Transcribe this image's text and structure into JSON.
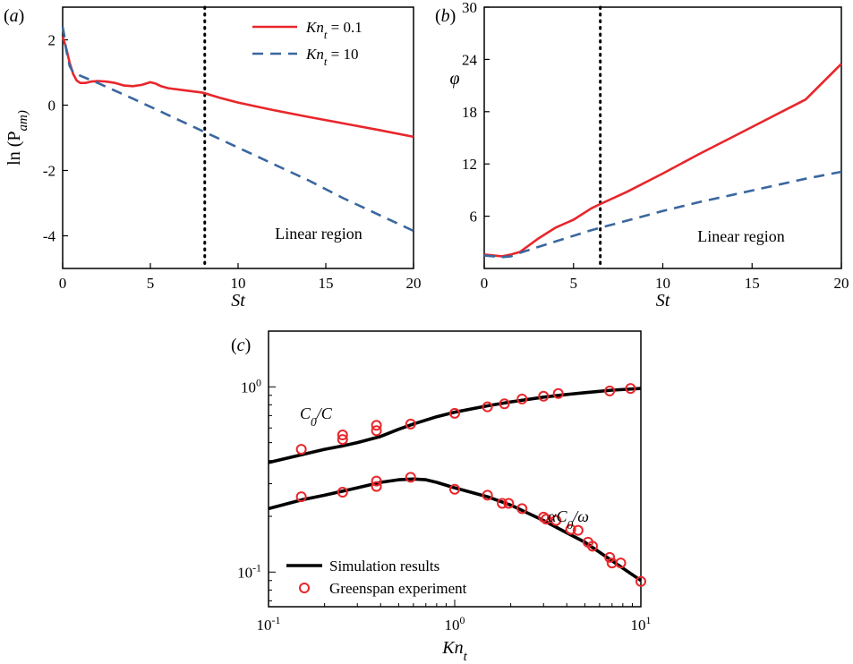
{
  "chart_data": [
    {
      "panel": "(a)",
      "type": "line",
      "xlabel": "St",
      "ylabel": "ln (P_am)",
      "xlim": [
        0,
        20
      ],
      "ylim": [
        -5,
        3
      ],
      "xticks": [
        0,
        5,
        10,
        15,
        20
      ],
      "yticks": [
        -4,
        -2,
        0,
        2
      ],
      "grid": false,
      "legend_position": "top-right",
      "vline_x": 8.1,
      "annotation": "Linear region",
      "series": [
        {
          "name": "Kn_t = 0.1",
          "color": "#e8262b",
          "style": "solid",
          "x": [
            0,
            0.2,
            0.4,
            0.6,
            0.8,
            1.0,
            1.3,
            1.6,
            2.0,
            2.5,
            3.0,
            3.5,
            4.0,
            4.5,
            5.0,
            5.3,
            5.6,
            6.0,
            7.0,
            8.0,
            9.0,
            10.0,
            12.0,
            14.0,
            16.0,
            18.0,
            20.0
          ],
          "y": [
            2.1,
            1.75,
            1.3,
            0.95,
            0.75,
            0.68,
            0.68,
            0.72,
            0.74,
            0.72,
            0.68,
            0.6,
            0.58,
            0.62,
            0.7,
            0.66,
            0.58,
            0.52,
            0.45,
            0.38,
            0.22,
            0.08,
            -0.15,
            -0.36,
            -0.56,
            -0.76,
            -0.97
          ]
        },
        {
          "name": "Kn_t = 10",
          "color": "#3a679f",
          "style": "dashed",
          "x": [
            0,
            0.1,
            0.2,
            0.4,
            0.6,
            0.8,
            1.0,
            2.0,
            4.0,
            6.0,
            8.0,
            10.0,
            12.0,
            14.0,
            16.0,
            18.0,
            20.0
          ],
          "y": [
            2.4,
            2.1,
            1.7,
            1.2,
            1.0,
            0.95,
            0.9,
            0.68,
            0.2,
            -0.3,
            -0.8,
            -1.3,
            -1.8,
            -2.3,
            -2.85,
            -3.35,
            -3.85
          ]
        }
      ]
    },
    {
      "panel": "(b)",
      "type": "line",
      "xlabel": "St",
      "ylabel": "φ",
      "xlim": [
        0,
        20
      ],
      "ylim": [
        0,
        30
      ],
      "xticks": [
        0,
        5,
        10,
        15,
        20
      ],
      "yticks": [
        6,
        12,
        18,
        24,
        30
      ],
      "grid": false,
      "vline_x": 6.5,
      "annotation": "Linear region",
      "series": [
        {
          "name": "Kn_t = 0.1",
          "color": "#e8262b",
          "style": "solid",
          "x": [
            0,
            0.5,
            1.0,
            1.5,
            2.0,
            3.0,
            4.0,
            5.0,
            6.0,
            6.5,
            8.0,
            10.0,
            12.0,
            14.0,
            16.0,
            18.0,
            20.0
          ],
          "y": [
            1.6,
            1.5,
            1.4,
            1.6,
            1.9,
            3.4,
            4.7,
            5.6,
            6.9,
            7.4,
            8.8,
            10.9,
            13.1,
            15.2,
            17.3,
            19.4,
            23.5
          ]
        },
        {
          "name": "Kn_t = 10",
          "color": "#3a679f",
          "style": "dashed",
          "x": [
            0,
            0.5,
            1.0,
            1.5,
            2.0,
            4.0,
            6.0,
            8.0,
            10.0,
            12.0,
            14.0,
            16.0,
            18.0,
            20.0
          ],
          "y": [
            1.5,
            1.4,
            1.3,
            1.4,
            1.8,
            3.1,
            4.4,
            5.5,
            6.6,
            7.6,
            8.5,
            9.4,
            10.3,
            11.1
          ]
        }
      ]
    },
    {
      "panel": "(c)",
      "type": "line",
      "xlabel": "Kn_t",
      "xscale": "log",
      "yscale": "log",
      "xlim": [
        0.1,
        10
      ],
      "ylim": [
        0.065,
        2.0
      ],
      "xticks": [
        "10^-1",
        "10^0",
        "10^1"
      ],
      "yticks": [
        "10^-1",
        "10^0"
      ],
      "grid": false,
      "legend_position": "bottom-left",
      "labels": [
        "C_0/C",
        "αC_0/ω"
      ],
      "series": [
        {
          "name": "Simulation results",
          "kind": "line",
          "color": "#000000",
          "curves": [
            {
              "label": "C_0/C",
              "x": [
                0.1,
                0.15,
                0.2,
                0.25,
                0.3,
                0.4,
                0.5,
                0.6,
                0.8,
                1.0,
                1.5,
                2.0,
                3.0,
                4.0,
                5.0,
                7.0,
                10.0
              ],
              "y": [
                0.39,
                0.43,
                0.46,
                0.48,
                0.5,
                0.54,
                0.59,
                0.63,
                0.69,
                0.73,
                0.79,
                0.83,
                0.88,
                0.91,
                0.93,
                0.96,
                0.98
              ]
            },
            {
              "label": "αC_0/ω",
              "x": [
                0.1,
                0.15,
                0.2,
                0.3,
                0.4,
                0.5,
                0.6,
                0.7,
                0.8,
                1.0,
                1.5,
                2.0,
                3.0,
                4.0,
                5.0,
                6.0,
                7.0,
                8.0,
                10.0
              ],
              "y": [
                0.22,
                0.245,
                0.26,
                0.285,
                0.305,
                0.315,
                0.318,
                0.315,
                0.305,
                0.285,
                0.255,
                0.23,
                0.19,
                0.163,
                0.145,
                0.128,
                0.115,
                0.105,
                0.09
              ]
            }
          ]
        },
        {
          "name": "Greenspan experiment",
          "kind": "markers",
          "color": "#e8262b",
          "curves": [
            {
              "label": "C_0/C",
              "x": [
                0.15,
                0.25,
                0.25,
                0.38,
                0.38,
                0.58,
                1.0,
                1.5,
                1.85,
                2.3,
                3.0,
                3.6,
                6.8,
                8.8
              ],
              "y": [
                0.46,
                0.52,
                0.55,
                0.58,
                0.62,
                0.63,
                0.72,
                0.78,
                0.81,
                0.86,
                0.89,
                0.92,
                0.95,
                0.98
              ]
            },
            {
              "label": "αC_0/ω",
              "x": [
                0.15,
                0.25,
                0.38,
                0.38,
                0.58,
                1.0,
                1.5,
                1.8,
                1.95,
                2.3,
                3.0,
                3.1,
                3.5,
                4.2,
                4.6,
                5.2,
                5.5,
                6.8,
                7.0,
                7.8,
                10.0
              ],
              "y": [
                0.255,
                0.27,
                0.29,
                0.31,
                0.325,
                0.28,
                0.26,
                0.235,
                0.235,
                0.22,
                0.198,
                0.193,
                0.19,
                0.17,
                0.168,
                0.145,
                0.138,
                0.12,
                0.112,
                0.112,
                0.089
              ]
            }
          ]
        }
      ]
    }
  ]
}
